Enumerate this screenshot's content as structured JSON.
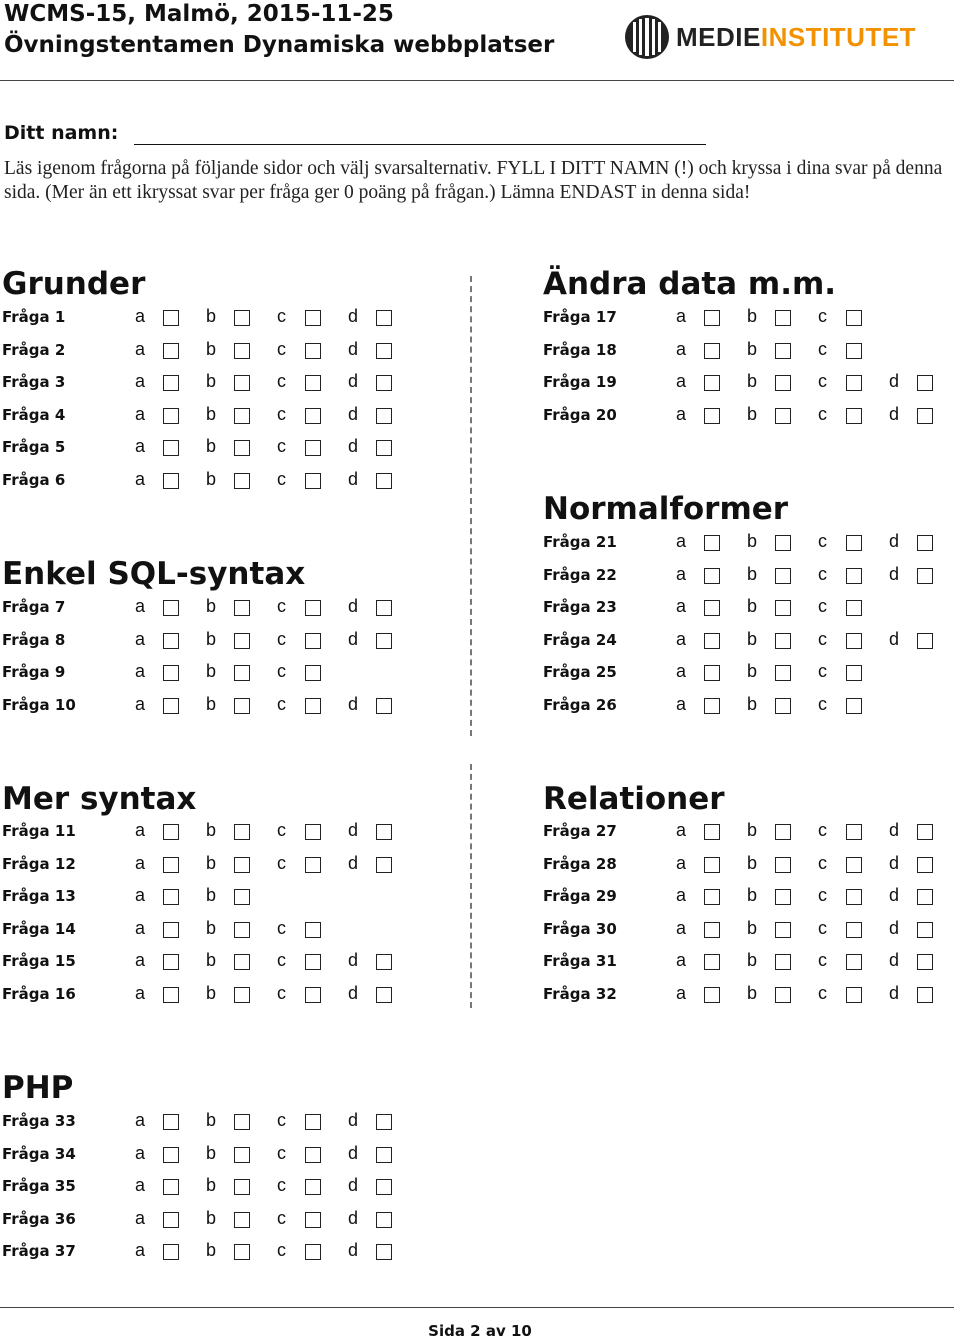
{
  "header": {
    "line1": "WCMS-15, Malmö, 2015-11-25",
    "line2": "Övningstentamen Dynamiska webbplatser",
    "logo_part1": "MEDIE",
    "logo_part2": "INSTITUTET"
  },
  "name_label": "Ditt namn:",
  "instructions": "Läs igenom frågorna på följande sidor och välj svarsalternativ. FYLL I DITT NAMN (!) och kryssa i dina svar på denna sida. (Mer än ett ikryssat svar per fråga ger 0 poäng på frågan.) Lämna ENDAST in denna sida!",
  "sections": [
    {
      "title": "Grunder",
      "questions": [
        {
          "label": "Fråga 1",
          "options": [
            "a",
            "b",
            "c",
            "d"
          ]
        },
        {
          "label": "Fråga 2",
          "options": [
            "a",
            "b",
            "c",
            "d"
          ]
        },
        {
          "label": "Fråga 3",
          "options": [
            "a",
            "b",
            "c",
            "d"
          ]
        },
        {
          "label": "Fråga 4",
          "options": [
            "a",
            "b",
            "c",
            "d"
          ]
        },
        {
          "label": "Fråga 5",
          "options": [
            "a",
            "b",
            "c",
            "d"
          ]
        },
        {
          "label": "Fråga 6",
          "options": [
            "a",
            "b",
            "c",
            "d"
          ]
        }
      ]
    },
    {
      "title": "Enkel SQL-syntax",
      "questions": [
        {
          "label": "Fråga 7",
          "options": [
            "a",
            "b",
            "c",
            "d"
          ]
        },
        {
          "label": "Fråga 8",
          "options": [
            "a",
            "b",
            "c",
            "d"
          ]
        },
        {
          "label": "Fråga 9",
          "options": [
            "a",
            "b",
            "c"
          ]
        },
        {
          "label": "Fråga 10",
          "options": [
            "a",
            "b",
            "c",
            "d"
          ]
        }
      ]
    },
    {
      "title": "Mer syntax",
      "questions": [
        {
          "label": "Fråga 11",
          "options": [
            "a",
            "b",
            "c",
            "d"
          ]
        },
        {
          "label": "Fråga 12",
          "options": [
            "a",
            "b",
            "c",
            "d"
          ]
        },
        {
          "label": "Fråga 13",
          "options": [
            "a",
            "b"
          ]
        },
        {
          "label": "Fråga 14",
          "options": [
            "a",
            "b",
            "c"
          ]
        },
        {
          "label": "Fråga 15",
          "options": [
            "a",
            "b",
            "c",
            "d"
          ]
        },
        {
          "label": "Fråga 16",
          "options": [
            "a",
            "b",
            "c",
            "d"
          ]
        }
      ]
    },
    {
      "title": "PHP",
      "questions": [
        {
          "label": "Fråga 33",
          "options": [
            "a",
            "b",
            "c",
            "d"
          ]
        },
        {
          "label": "Fråga 34",
          "options": [
            "a",
            "b",
            "c",
            "d"
          ]
        },
        {
          "label": "Fråga 35",
          "options": [
            "a",
            "b",
            "c",
            "d"
          ]
        },
        {
          "label": "Fråga 36",
          "options": [
            "a",
            "b",
            "c",
            "d"
          ]
        },
        {
          "label": "Fråga 37",
          "options": [
            "a",
            "b",
            "c",
            "d"
          ]
        }
      ]
    },
    {
      "title": "Ändra data m.m.",
      "questions": [
        {
          "label": "Fråga 17",
          "options": [
            "a",
            "b",
            "c"
          ]
        },
        {
          "label": "Fråga 18",
          "options": [
            "a",
            "b",
            "c"
          ]
        },
        {
          "label": "Fråga 19",
          "options": [
            "a",
            "b",
            "c",
            "d"
          ]
        },
        {
          "label": "Fråga 20",
          "options": [
            "a",
            "b",
            "c",
            "d"
          ]
        }
      ]
    },
    {
      "title": "Normalformer",
      "questions": [
        {
          "label": "Fråga 21",
          "options": [
            "a",
            "b",
            "c",
            "d"
          ]
        },
        {
          "label": "Fråga 22",
          "options": [
            "a",
            "b",
            "c",
            "d"
          ]
        },
        {
          "label": "Fråga 23",
          "options": [
            "a",
            "b",
            "c"
          ]
        },
        {
          "label": "Fråga 24",
          "options": [
            "a",
            "b",
            "c",
            "d"
          ]
        },
        {
          "label": "Fråga 25",
          "options": [
            "a",
            "b",
            "c"
          ]
        },
        {
          "label": "Fråga 26",
          "options": [
            "a",
            "b",
            "c"
          ]
        }
      ]
    },
    {
      "title": "Relationer",
      "questions": [
        {
          "label": "Fråga 27",
          "options": [
            "a",
            "b",
            "c",
            "d"
          ]
        },
        {
          "label": "Fråga 28",
          "options": [
            "a",
            "b",
            "c",
            "d"
          ]
        },
        {
          "label": "Fråga 29",
          "options": [
            "a",
            "b",
            "c",
            "d"
          ]
        },
        {
          "label": "Fråga 30",
          "options": [
            "a",
            "b",
            "c",
            "d"
          ]
        },
        {
          "label": "Fråga 31",
          "options": [
            "a",
            "b",
            "c",
            "d"
          ]
        },
        {
          "label": "Fråga 32",
          "options": [
            "a",
            "b",
            "c",
            "d"
          ]
        }
      ]
    }
  ],
  "footer": "Sida 2 av 10",
  "colors": {
    "accent": "#f39200",
    "text": "#111111"
  }
}
